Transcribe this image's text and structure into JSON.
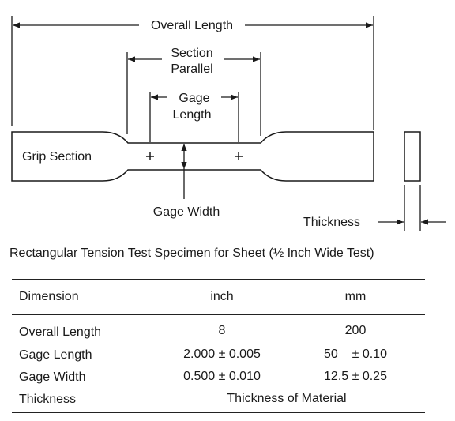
{
  "diagram": {
    "overall_length": "Overall Length",
    "section_parallel_line1": "Section",
    "section_parallel_line2": "Parallel",
    "gage_length_line1": "Gage",
    "gage_length_line2": "Length",
    "grip_section": "Grip Section",
    "gage_width": "Gage Width",
    "thickness": "Thickness"
  },
  "caption": "Rectangular Tension Test Specimen for Sheet (½ Inch Wide Test)",
  "table": {
    "headers": [
      "Dimension",
      "inch",
      "mm"
    ],
    "rows": [
      {
        "dimension": "Overall Length",
        "inch": "8",
        "mm": "200"
      },
      {
        "dimension": "Gage Length",
        "inch": "2.000 ± 0.005",
        "mm": "50    ± 0.10"
      },
      {
        "dimension": "Gage Width",
        "inch": "0.500 ± 0.010",
        "mm": "12.5 ± 0.25"
      },
      {
        "dimension": "Thickness",
        "span": "Thickness of Material"
      }
    ]
  }
}
